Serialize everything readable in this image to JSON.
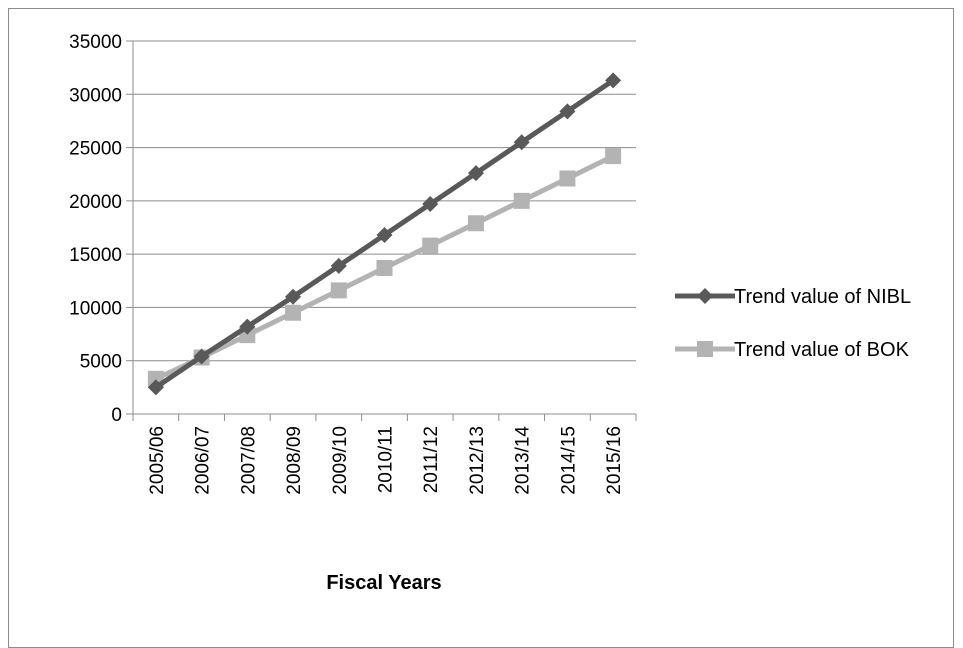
{
  "chart_data": {
    "type": "line",
    "title": "",
    "xlabel": "Fiscal Years",
    "ylabel": "",
    "ylim": [
      0,
      35000
    ],
    "yticks": [
      0,
      5000,
      10000,
      15000,
      20000,
      25000,
      30000,
      35000
    ],
    "categories": [
      "2005/06",
      "2006/07",
      "2007/08",
      "2008/09",
      "2009/10",
      "2010/11",
      "2011/12",
      "2012/13",
      "2013/14",
      "2014/15",
      "2015/16"
    ],
    "grid": "horizontal",
    "legend_position": "right",
    "series": [
      {
        "name": "Trend value of NIBL",
        "color": "#595959",
        "marker": "diamond",
        "values": [
          2500,
          5400,
          8200,
          11000,
          13900,
          16800,
          19700,
          22600,
          25500,
          28400,
          31300
        ]
      },
      {
        "name": "Trend value of BOK",
        "color": "#b3b3b3",
        "marker": "square",
        "values": [
          3300,
          5300,
          7400,
          9500,
          11600,
          13700,
          15800,
          17900,
          20000,
          22100,
          24200
        ]
      }
    ]
  }
}
